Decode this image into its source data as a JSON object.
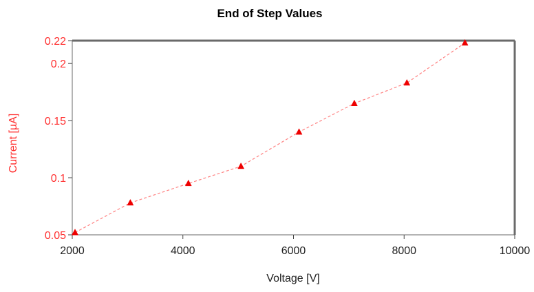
{
  "chart_data": {
    "type": "line",
    "title": "End of Step Values",
    "xlabel": "Voltage [V]",
    "ylabel": "Current [µA]",
    "xlim": [
      2000,
      10000
    ],
    "ylim": [
      0.05,
      0.22
    ],
    "x_ticks": [
      2000,
      4000,
      6000,
      8000,
      10000
    ],
    "x_tick_labels": [
      "2000",
      "4000",
      "6000",
      "8000",
      "10000"
    ],
    "y_ticks": [
      0.05,
      0.1,
      0.15,
      0.2,
      0.22
    ],
    "y_tick_labels": [
      "0.05",
      "0.1",
      "0.15",
      "0.2",
      "0.22"
    ],
    "grid": false,
    "legend": "none",
    "marker": "triangle",
    "line_style": "dashed",
    "colors": {
      "series": "#ee0000",
      "axis_text": "#ff3030",
      "frame": "#6a6a6a",
      "title": "#000000"
    },
    "series": [
      {
        "x": [
          2050,
          3050,
          4100,
          5050,
          6100,
          7100,
          8050,
          9100
        ],
        "y": [
          0.052,
          0.078,
          0.095,
          0.11,
          0.14,
          0.165,
          0.183,
          0.218
        ]
      }
    ]
  }
}
